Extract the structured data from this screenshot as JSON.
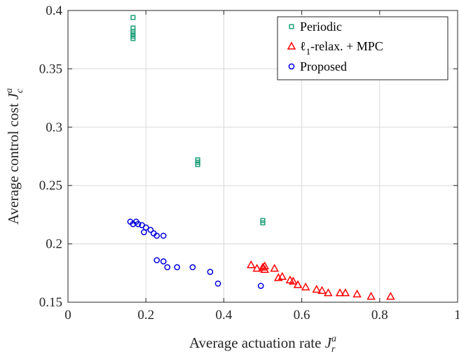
{
  "chart_data": {
    "type": "scatter",
    "xlabel": "Average actuation rate J_r^a",
    "ylabel": "Average control cost J_c^a",
    "xlim": [
      0,
      1
    ],
    "ylim": [
      0.15,
      0.4
    ],
    "x_ticks": [
      "0",
      "0.2",
      "0.4",
      "0.6",
      "0.8",
      "1"
    ],
    "y_ticks": [
      "0.15",
      "0.2",
      "0.25",
      "0.3",
      "0.35",
      "0.4"
    ],
    "grid": true,
    "legend_position": "top-right",
    "series": [
      {
        "name": "Periodic",
        "marker": "square",
        "color": "#1b9e77",
        "points": [
          [
            0.167,
            0.394
          ],
          [
            0.167,
            0.385
          ],
          [
            0.167,
            0.382
          ],
          [
            0.167,
            0.38
          ],
          [
            0.167,
            0.378
          ],
          [
            0.167,
            0.376
          ],
          [
            0.333,
            0.272
          ],
          [
            0.333,
            0.27
          ],
          [
            0.333,
            0.268
          ],
          [
            0.5,
            0.22
          ],
          [
            0.5,
            0.218
          ]
        ]
      },
      {
        "name": "ℓ1-relax. + MPC",
        "marker": "triangle",
        "color": "#ff0000",
        "points": [
          [
            0.47,
            0.182
          ],
          [
            0.485,
            0.179
          ],
          [
            0.5,
            0.18
          ],
          [
            0.505,
            0.181
          ],
          [
            0.505,
            0.178
          ],
          [
            0.53,
            0.179
          ],
          [
            0.54,
            0.171
          ],
          [
            0.55,
            0.172
          ],
          [
            0.57,
            0.169
          ],
          [
            0.578,
            0.168
          ],
          [
            0.59,
            0.165
          ],
          [
            0.61,
            0.163
          ],
          [
            0.638,
            0.161
          ],
          [
            0.652,
            0.16
          ],
          [
            0.668,
            0.158
          ],
          [
            0.698,
            0.158
          ],
          [
            0.712,
            0.158
          ],
          [
            0.742,
            0.157
          ],
          [
            0.778,
            0.155
          ],
          [
            0.828,
            0.155
          ]
        ]
      },
      {
        "name": "Proposed",
        "marker": "circle",
        "color": "#0000dd",
        "points": [
          [
            0.16,
            0.219
          ],
          [
            0.167,
            0.217
          ],
          [
            0.175,
            0.219
          ],
          [
            0.18,
            0.217
          ],
          [
            0.19,
            0.216
          ],
          [
            0.195,
            0.21
          ],
          [
            0.2,
            0.214
          ],
          [
            0.212,
            0.212
          ],
          [
            0.22,
            0.209
          ],
          [
            0.228,
            0.207
          ],
          [
            0.245,
            0.207
          ],
          [
            0.228,
            0.186
          ],
          [
            0.245,
            0.185
          ],
          [
            0.255,
            0.18
          ],
          [
            0.28,
            0.18
          ],
          [
            0.32,
            0.18
          ],
          [
            0.365,
            0.176
          ],
          [
            0.385,
            0.166
          ],
          [
            0.495,
            0.164
          ]
        ]
      }
    ]
  }
}
